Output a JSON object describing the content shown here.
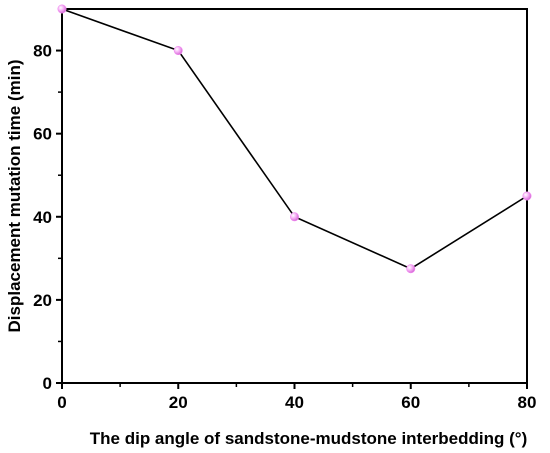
{
  "chart_data": {
    "type": "line",
    "title": "",
    "xlabel": "The dip angle of sandstone-mudstone interbedding (°)",
    "ylabel": "Displacement mutation time (min)",
    "xlim": [
      0,
      80
    ],
    "ylim": [
      0,
      90
    ],
    "xticks": [
      0,
      20,
      40,
      60,
      80
    ],
    "yticks": [
      0,
      20,
      40,
      60,
      80
    ],
    "grid": false,
    "legend": "none",
    "series": [
      {
        "x": [
          0,
          20,
          40,
          60,
          80
        ],
        "y": [
          90,
          80,
          40,
          27.5,
          45
        ],
        "line_color": "#000000",
        "marker_color": "#f08cf0"
      }
    ]
  }
}
